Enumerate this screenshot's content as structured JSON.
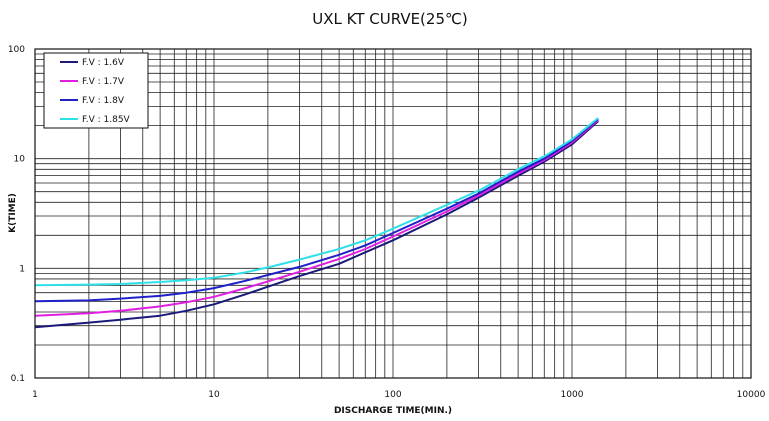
{
  "chart_data": {
    "type": "line",
    "title": "UXL KT CURVE(25℃)",
    "xlabel": "DISCHARGE TIME(MIN.)",
    "ylabel": "K(TIME)",
    "xscale": "log",
    "yscale": "log",
    "xlim": [
      1,
      10000
    ],
    "ylim": [
      0.1,
      100
    ],
    "xticks": [
      "1",
      "10",
      "100",
      "1000",
      "10000"
    ],
    "yticks": [
      "0.1",
      "1",
      "10",
      "100"
    ],
    "grid": true,
    "legend_position": "top-left",
    "series": [
      {
        "name": "F.V : 1.6V",
        "color": "#1a1a7a",
        "points": [
          [
            1,
            0.29
          ],
          [
            2,
            0.32
          ],
          [
            3,
            0.34
          ],
          [
            5,
            0.37
          ],
          [
            7,
            0.41
          ],
          [
            10,
            0.47
          ],
          [
            15,
            0.58
          ],
          [
            20,
            0.68
          ],
          [
            30,
            0.85
          ],
          [
            50,
            1.1
          ],
          [
            70,
            1.4
          ],
          [
            100,
            1.8
          ],
          [
            200,
            3.1
          ],
          [
            300,
            4.4
          ],
          [
            500,
            7.0
          ],
          [
            700,
            9.4
          ],
          [
            1000,
            13.5
          ],
          [
            1400,
            22
          ]
        ]
      },
      {
        "name": "F.V : 1.7V",
        "color": "#e020e0",
        "points": [
          [
            1,
            0.37
          ],
          [
            2,
            0.39
          ],
          [
            3,
            0.41
          ],
          [
            5,
            0.45
          ],
          [
            7,
            0.49
          ],
          [
            10,
            0.55
          ],
          [
            15,
            0.66
          ],
          [
            20,
            0.76
          ],
          [
            30,
            0.93
          ],
          [
            50,
            1.22
          ],
          [
            70,
            1.5
          ],
          [
            100,
            1.95
          ],
          [
            200,
            3.3
          ],
          [
            300,
            4.6
          ],
          [
            500,
            7.3
          ],
          [
            700,
            9.7
          ],
          [
            1000,
            14
          ],
          [
            1400,
            22.5
          ]
        ]
      },
      {
        "name": "F.V : 1.8V",
        "color": "#2020c8",
        "points": [
          [
            1,
            0.5
          ],
          [
            2,
            0.51
          ],
          [
            3,
            0.53
          ],
          [
            5,
            0.56
          ],
          [
            7,
            0.6
          ],
          [
            10,
            0.66
          ],
          [
            15,
            0.77
          ],
          [
            20,
            0.87
          ],
          [
            30,
            1.03
          ],
          [
            50,
            1.33
          ],
          [
            70,
            1.62
          ],
          [
            100,
            2.1
          ],
          [
            200,
            3.5
          ],
          [
            300,
            4.8
          ],
          [
            500,
            7.6
          ],
          [
            700,
            10
          ],
          [
            1000,
            14.5
          ],
          [
            1400,
            23
          ]
        ]
      },
      {
        "name": "F.V : 1.85V",
        "color": "#30e0e8",
        "points": [
          [
            1,
            0.7
          ],
          [
            2,
            0.71
          ],
          [
            3,
            0.72
          ],
          [
            5,
            0.75
          ],
          [
            7,
            0.78
          ],
          [
            10,
            0.82
          ],
          [
            15,
            0.92
          ],
          [
            20,
            1.02
          ],
          [
            30,
            1.2
          ],
          [
            50,
            1.5
          ],
          [
            70,
            1.8
          ],
          [
            100,
            2.3
          ],
          [
            200,
            3.8
          ],
          [
            300,
            5.1
          ],
          [
            500,
            8.0
          ],
          [
            700,
            10.5
          ],
          [
            1000,
            15
          ],
          [
            1400,
            23.5
          ]
        ]
      }
    ]
  }
}
